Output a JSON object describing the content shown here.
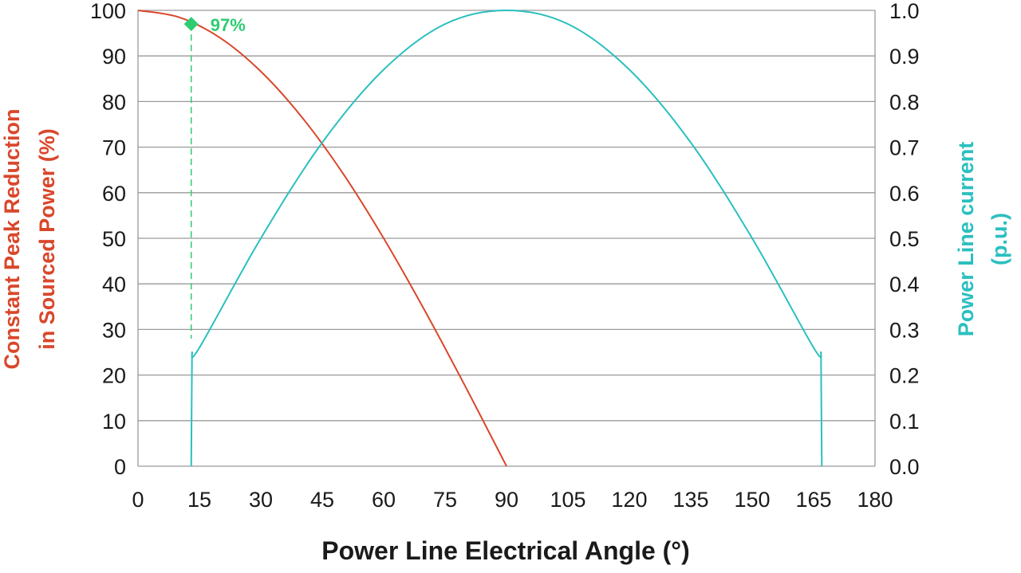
{
  "chart_data": {
    "type": "line",
    "xlabel": "Power Line Electrical Angle (°)",
    "ylabel_left": [
      "Constant Peak Reduction",
      "in Sourced Power (%)"
    ],
    "ylabel_right": [
      "Power Line current",
      "(p.u.)"
    ],
    "xlim": [
      0,
      180
    ],
    "ylim_left": [
      0,
      100
    ],
    "ylim_right": [
      0.0,
      1.0
    ],
    "x_ticks": [
      "0",
      "15",
      "30",
      "45",
      "60",
      "75",
      "90",
      "105",
      "120",
      "135",
      "150",
      "165",
      "180"
    ],
    "y_left_ticks": [
      "0",
      "10",
      "20",
      "30",
      "40",
      "50",
      "60",
      "70",
      "80",
      "90",
      "100"
    ],
    "y_right_ticks": [
      "0.0",
      "0.1",
      "0.2",
      "0.3",
      "0.4",
      "0.5",
      "0.6",
      "0.7",
      "0.8",
      "0.9",
      "1.0"
    ],
    "grid": "horizontal",
    "colors": {
      "peak_reduction": "#d9472b",
      "current": "#2bbfbf",
      "marker": "#2ecc71",
      "grid": "#9a9a9a",
      "axis_label_right": "#2bbfbf"
    },
    "series": [
      {
        "axis": "left",
        "x": [
          0,
          10,
          20,
          30,
          40,
          50,
          60,
          70,
          80,
          90
        ],
        "values": [
          100,
          98.5,
          94,
          86.6,
          76.6,
          64.3,
          50,
          34.2,
          17.4,
          0
        ]
      },
      {
        "axis": "right",
        "x": [
          13,
          13.2,
          15,
          30,
          45,
          60,
          75,
          90,
          105,
          120,
          135,
          150,
          165,
          166.8,
          167
        ],
        "values": [
          0,
          0.25,
          0.26,
          0.5,
          0.71,
          0.87,
          0.97,
          1.0,
          0.97,
          0.87,
          0.71,
          0.5,
          0.26,
          0.25,
          0
        ]
      }
    ],
    "annotations": [
      {
        "x": 13,
        "y": 97,
        "y_axis": "left",
        "label": "97%",
        "dashed_to_y": 28
      }
    ]
  }
}
